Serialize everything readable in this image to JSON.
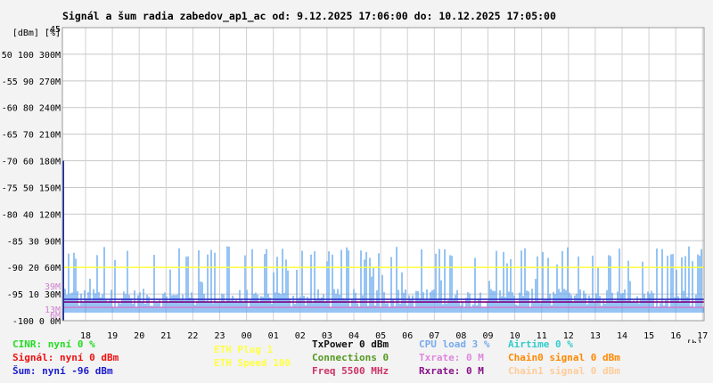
{
  "title": "Signál a šum radia zabedov_ap1_ac od: 9.12.2025 17:06:00 do: 10.12.2025 17:05:00",
  "chart_data": {
    "type": "line",
    "title": "Signál a šum radia zabedov_ap1_ac od: 9.12.2025 17:06:00 do: 10.12.2025 17:05:00",
    "y_units_label": "[dBm] [%]",
    "x_unit_label": "[h]",
    "y_ticks": [
      {
        "dbm": "-45",
        "pct": "",
        "rate": ""
      },
      {
        "dbm": "-50",
        "pct": "100",
        "rate": "300M"
      },
      {
        "dbm": "-55",
        "pct": "90",
        "rate": "270M"
      },
      {
        "dbm": "-60",
        "pct": "80",
        "rate": "240M"
      },
      {
        "dbm": "-65",
        "pct": "70",
        "rate": "210M"
      },
      {
        "dbm": "-70",
        "pct": "60",
        "rate": "180M"
      },
      {
        "dbm": "-75",
        "pct": "50",
        "rate": "150M"
      },
      {
        "dbm": "-80",
        "pct": "40",
        "rate": "120M"
      },
      {
        "dbm": "-85",
        "pct": "30",
        "rate": "90M"
      },
      {
        "dbm": "-90",
        "pct": "20",
        "rate": "60M"
      },
      {
        "dbm": "-95",
        "pct": "10",
        "rate": "30M"
      },
      {
        "dbm": "-100",
        "pct": "0",
        "rate": "0M"
      }
    ],
    "x_ticks": [
      "18",
      "19",
      "20",
      "21",
      "22",
      "23",
      "00",
      "01",
      "02",
      "03",
      "04",
      "05",
      "06",
      "07",
      "08",
      "09",
      "10",
      "11",
      "12",
      "13",
      "14",
      "15",
      "16",
      "17"
    ],
    "ylim_dbm": [
      -100,
      -45
    ],
    "marker_labels": [
      {
        "text": "39M",
        "value_dbm": -93.5,
        "color": "#d080d0"
      },
      {
        "text": "13M",
        "value_dbm": -97.8,
        "color": "#d080d0"
      },
      {
        "text": "6M",
        "value_dbm": -98.9,
        "color": "#d080d0"
      }
    ],
    "series": [
      {
        "name": "ETH Speed 100",
        "type": "hline",
        "value_dbm": -90,
        "color": "#ffff33"
      },
      {
        "name": "Šum",
        "type": "hline",
        "value_dbm": -96,
        "color": "#3030c0"
      },
      {
        "name": "Rxrate",
        "type": "hline",
        "value_dbm": -96.5,
        "color": "#800080"
      },
      {
        "name": "Txrate",
        "type": "hline",
        "value_dbm": -97.5,
        "color": "#d080d0"
      },
      {
        "name": "CPU load",
        "type": "spikes",
        "color": "#6aaaf0",
        "base_dbm": -98.5,
        "min_dbm": -95,
        "max_dbm": -86,
        "note": "dense noisy activity"
      },
      {
        "name": "initial",
        "type": "vline",
        "x_index": 0,
        "from_dbm": -100,
        "to_dbm": -70,
        "color": "#1a2aa0"
      }
    ]
  },
  "legend": {
    "col1": [
      {
        "text": "CINR: nyní 0 %",
        "color": "#22dd22"
      },
      {
        "text": "Signál: nyní 0 dBm",
        "color": "#ee1111"
      },
      {
        "text": "Šum: nyní -96 dBm",
        "color": "#1a1acc"
      }
    ],
    "col2": [
      {
        "text": "ETH Plug 1",
        "color": "#ffff44"
      },
      {
        "text": "ETH Speed 100",
        "color": "#ffff44"
      }
    ],
    "col3": [
      {
        "text": "TxPower 0 dBm",
        "color": "#111111"
      },
      {
        "text": "Connections 0",
        "color": "#559922"
      },
      {
        "text": "Freq 5500 MHz",
        "color": "#cc3366"
      }
    ],
    "col4": [
      {
        "text": "CPU load 3 %",
        "color": "#77aaee"
      },
      {
        "text": "Txrate: 0 M",
        "color": "#dd88dd"
      },
      {
        "text": "Rxrate: 0 M",
        "color": "#881188"
      }
    ],
    "col5": [
      {
        "text": "Airtime 0 %",
        "color": "#33cccc"
      },
      {
        "text": "Chain0 signal 0 dBm",
        "color": "#ff8800"
      },
      {
        "text": "Chain1 signal 0 dBm",
        "color": "#ffcc99"
      }
    ]
  }
}
